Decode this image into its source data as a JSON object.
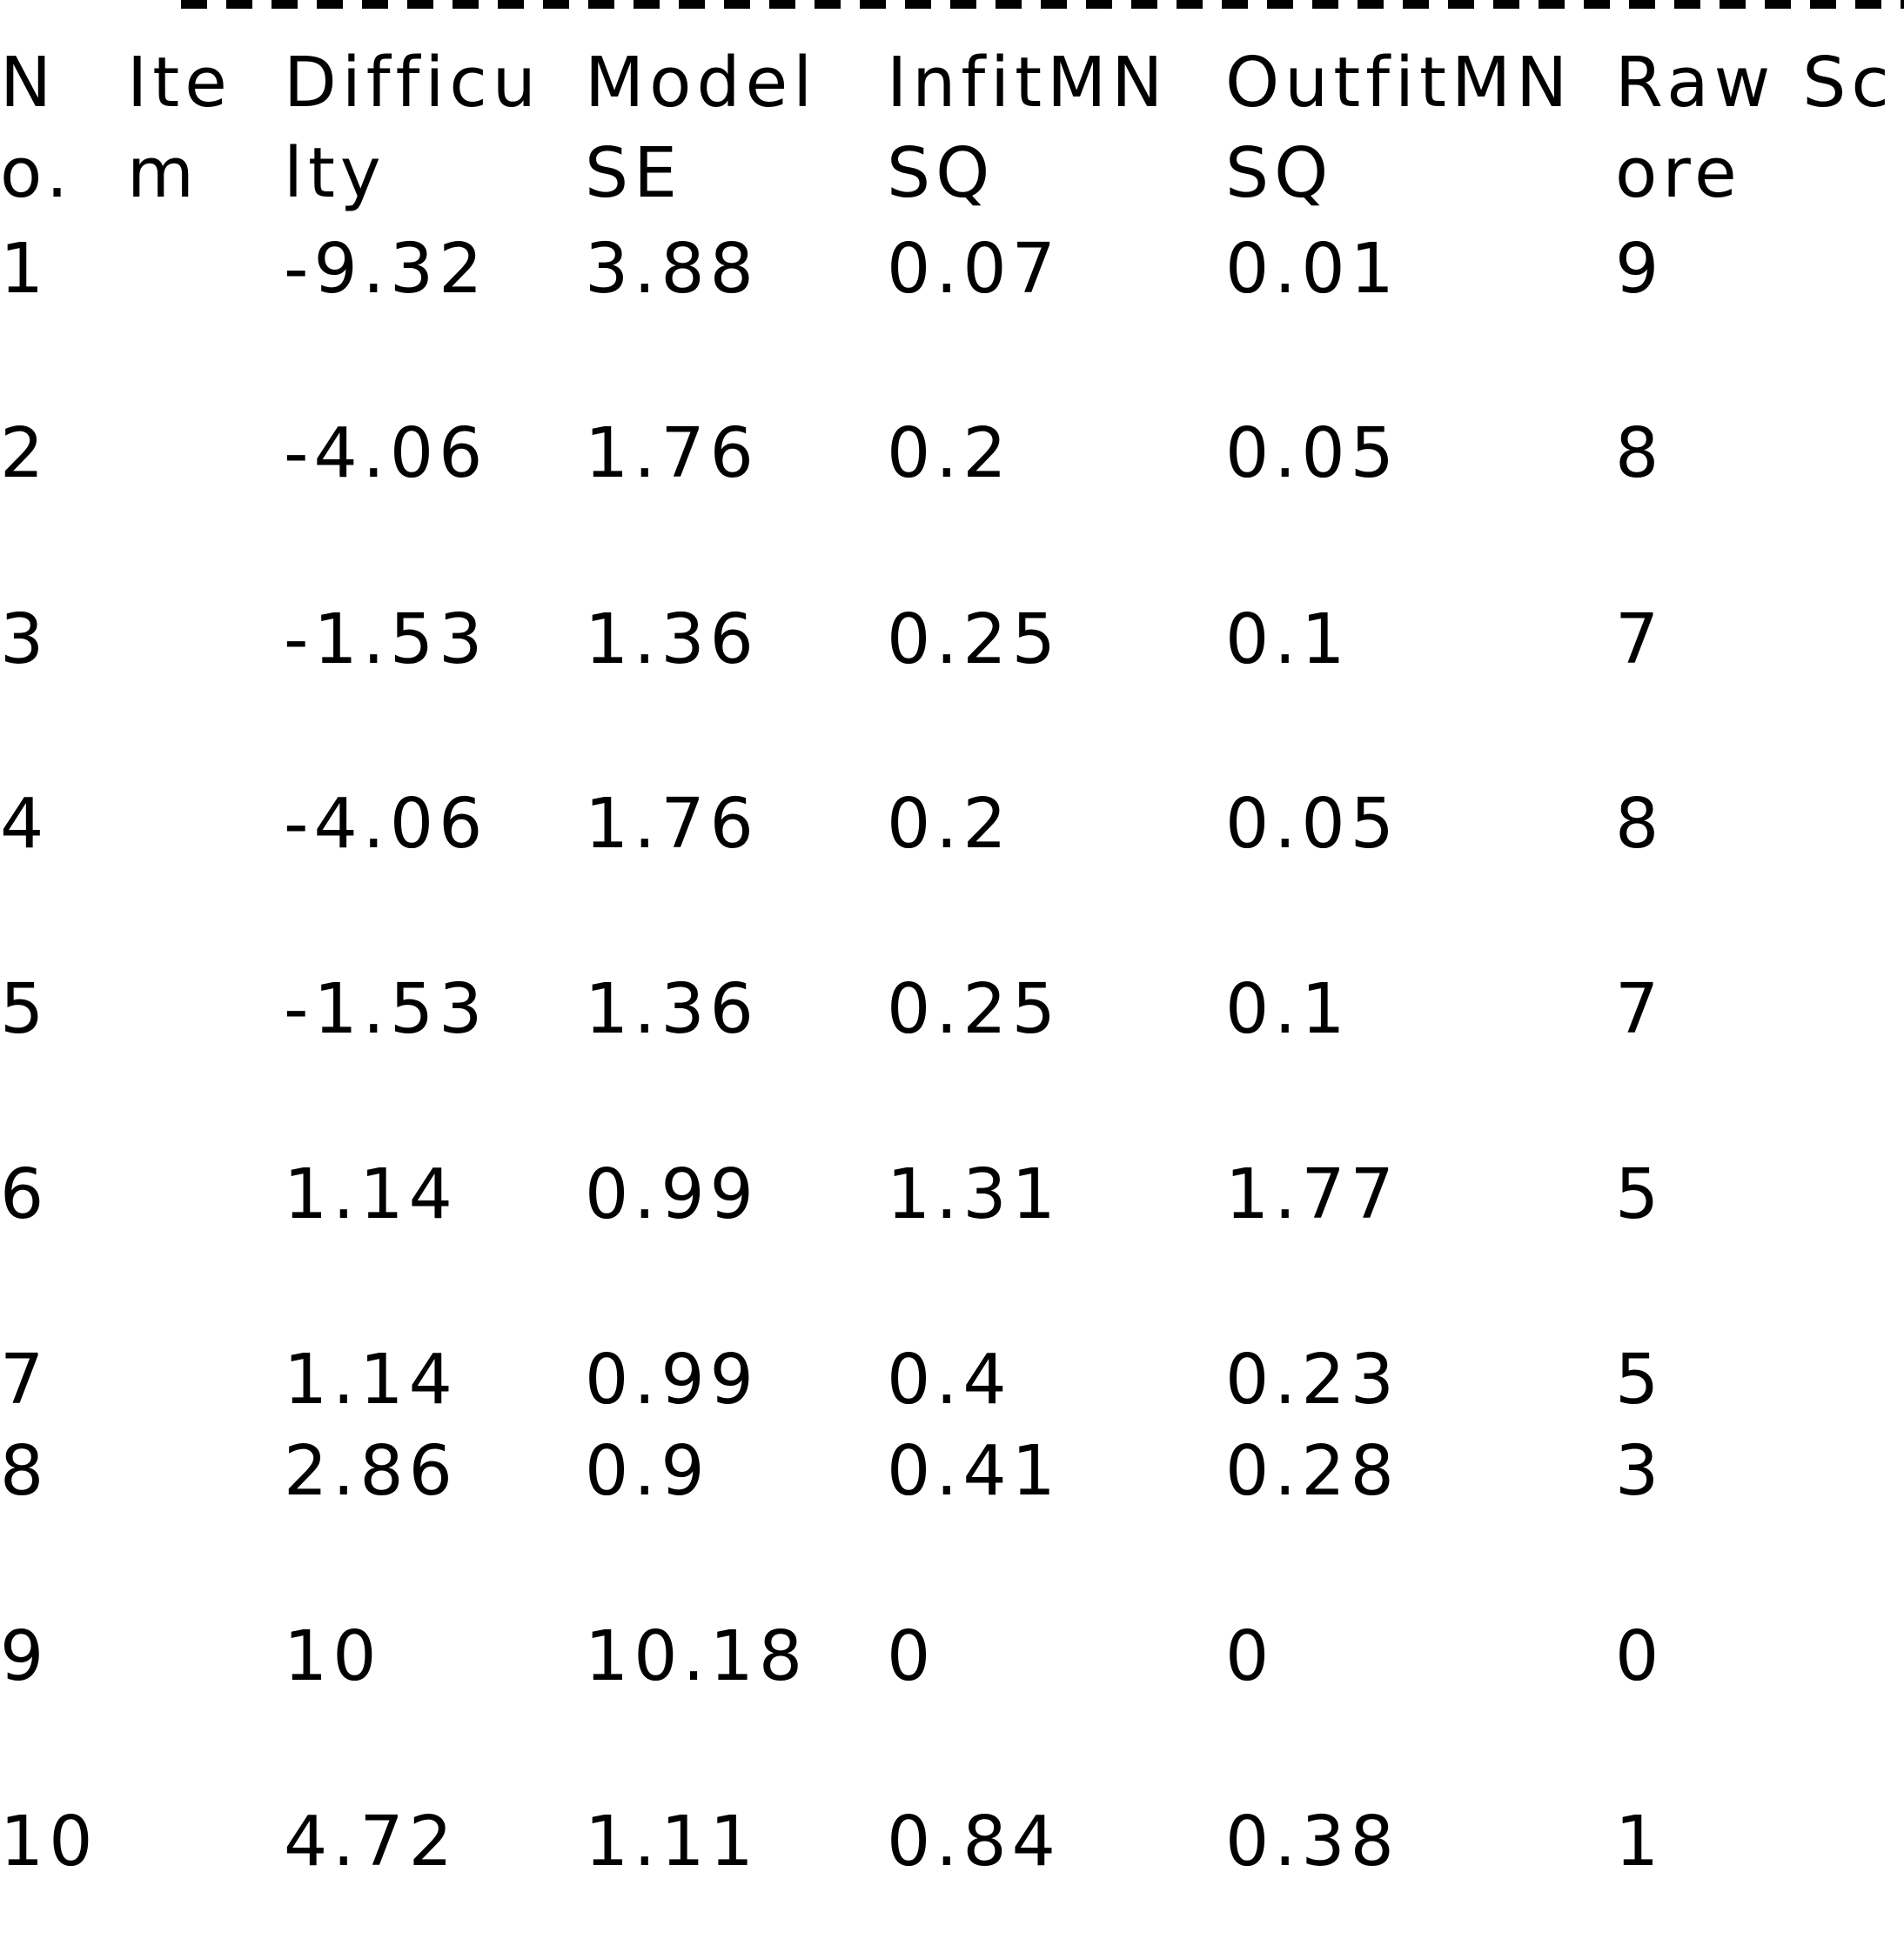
{
  "table": {
    "headers": [
      [
        "N",
        "o."
      ],
      [
        "Ite",
        "m"
      ],
      [
        "Difficu",
        "lty"
      ],
      [
        "Model",
        "SE"
      ],
      [
        "InfitMN",
        "SQ"
      ],
      [
        "OutfitMN",
        "SQ"
      ],
      [
        "Raw Sc",
        "ore"
      ]
    ],
    "rows": [
      [
        "1",
        "",
        "-9.32",
        "3.88",
        "0.07",
        "0.01",
        "9"
      ],
      [
        "2",
        "",
        "-4.06",
        "1.76",
        "0.2",
        "0.05",
        "8"
      ],
      [
        "3",
        "",
        "-1.53",
        "1.36",
        "0.25",
        "0.1",
        "7"
      ],
      [
        "4",
        "",
        "-4.06",
        "1.76",
        "0.2",
        "0.05",
        "8"
      ],
      [
        "5",
        "",
        "-1.53",
        "1.36",
        "0.25",
        "0.1",
        "7"
      ],
      [
        "6",
        "",
        "1.14",
        "0.99",
        "1.31",
        "1.77",
        "5"
      ],
      [
        "7",
        "",
        "1.14",
        "0.99",
        "0.4",
        "0.23",
        "5"
      ],
      [
        "8",
        "",
        "2.86",
        "0.9",
        "0.41",
        "0.28",
        "3"
      ],
      [
        "9",
        "",
        "10",
        "10.18",
        "0",
        "0",
        "0"
      ],
      [
        "10",
        "",
        "4.72",
        "1.11",
        "0.84",
        "0.38",
        "1"
      ]
    ]
  }
}
